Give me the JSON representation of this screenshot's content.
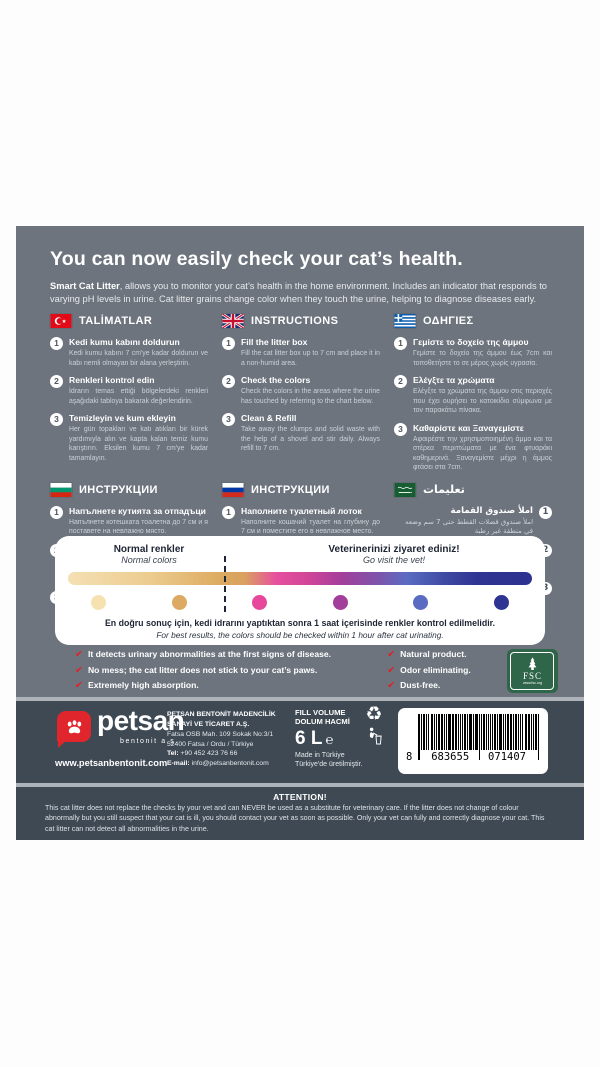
{
  "header": {
    "title": "You can now easily check your cat’s health.",
    "lead_bold": "Smart Cat Litter",
    "lead_rest": ", allows you to monitor your cat’s health in the home environment. Includes an indicator that responds to varying pH levels in urine. Cat litter grains change color when they touch the urine, helping to diagnose diseases early."
  },
  "sections": [
    {
      "lang": "turkish",
      "flag": "turkey-flag",
      "title": "TALİMATLAR",
      "steps": [
        {
          "num": "1",
          "title": "Kedi kumu kabını doldurun",
          "body": "Kedi kumu kabını 7 cm'ye kadar doldurun ve kabı nemli olmayan bir alana yerleştirin."
        },
        {
          "num": "2",
          "title": "Renkleri kontrol edin",
          "body": "İdrarın temas ettiği bölgelerdeki renkleri aşağıdaki tabloya bakarak değerlendirin."
        },
        {
          "num": "3",
          "title": "Temizleyin ve kum ekleyin",
          "body": "Her gün topakları ve katı atıkları bir kürek yardımıyla alın ve kapta kalan temiz kumu karıştırın. Eksilen kumu 7 cm'ye kadar tamamlayın."
        }
      ]
    },
    {
      "lang": "english",
      "flag": "uk-flag",
      "title": "INSTRUCTIONS",
      "steps": [
        {
          "num": "1",
          "title": "Fill the litter box",
          "body": "Fill the cat litter box up to 7 cm and place it in a non-humid area."
        },
        {
          "num": "2",
          "title": "Check the colors",
          "body": "Check the colors in the areas where the urine has touched by referring to the chart below."
        },
        {
          "num": "3",
          "title": "Clean & Refill",
          "body": "Take away the clumps and solid waste with the help of a shovel and stir daily. Always refill to 7 cm."
        }
      ]
    },
    {
      "lang": "greek",
      "flag": "greece-flag",
      "title": "ΟΔΗΓΙΕΣ",
      "steps": [
        {
          "num": "1",
          "title": "Γεμίστε το δοχείο της άμμου",
          "body": "Γεμίστε το δοχείο της άμμου έως 7cm και τοποθετήστε το σε μέρος χωρίς υγρασία."
        },
        {
          "num": "2",
          "title": "Ελέγξτε τα χρώματα",
          "body": "Ελέγξτε τα χρώματα της άμμου στις περιοχές που έχει ουρήσει το κατοικίδιο σύμφωνα με τον παρακάτω πίνακα."
        },
        {
          "num": "3",
          "title": "Καθαρίστε και Ξαναγεμίστε",
          "body": "Αφαιρέστε την χρησιμοποιημένη άμμο και τα στέρεα περιττώματα με ένα φτυαράκι καθημερινά. Ξαναγεμίστε μέχρι η άμμος φτάσει στα 7cm."
        }
      ]
    },
    {
      "lang": "bulgarian",
      "flag": "bulgaria-flag",
      "title": "ИНСТРУКЦИИ",
      "steps": [
        {
          "num": "1",
          "title": "Напълнете кутията за отпадъци",
          "body": "Напълнете котешката тоалетна до 7 см и я поставете на невлажно място."
        },
        {
          "num": "2",
          "title": "Проверете цветовете",
          "body": "Проверете цветовете в областите, където урината е докоснала, като се обърнете към таблицата по-долу."
        },
        {
          "num": "3",
          "title": "Почистване и пълнене",
          "body": "Отстранете буците и твърдите отпадъци с помощта на лопата и разбърквайте ежедневно. Винаги пълнете до 7 см."
        }
      ]
    },
    {
      "lang": "russian",
      "flag": "russia-flag",
      "title": "ИНСТРУКЦИИ",
      "steps": [
        {
          "num": "1",
          "title": "Наполните туалетный лоток",
          "body": "Наполните кошачий туалет на глубину до 7 см и поместите его в невлажное место."
        },
        {
          "num": "2",
          "title": "Проверьте цвета",
          "body": "Проверьте цвета участков, к которым прикоснулась моча, используя таблицу ниже."
        },
        {
          "num": "3",
          "title": "Очистите и наполните",
          "body": "Убирайте комки и твердые отходы с помощью лопаты и ежедневно перемешивайте. Всегда доливайте до 7 см."
        }
      ]
    },
    {
      "lang": "arabic",
      "flag": "saudi-arabia-flag",
      "title": "تعليمات",
      "steps": [
        {
          "num": "1",
          "title": "املأ صندوق القمامة",
          "body": "املأ صندوق فضلات القطط حتى 7 سم وضعه في منطقة غير رطبة"
        },
        {
          "num": "2",
          "title": "تحقق من الألوان",
          "body": "تحقق من الألوان في المناطق التي لمسها البول من خلال الرجوع إلى الرسم البياني أدناه"
        },
        {
          "num": "3",
          "title": "تنظيف وإعادة الملء",
          "body": "قم بإزالة الكتل والنفايات الصلبة بمساعدة المجرفة وحركها يوميا. قم دائما بإعادة التعبئة إلى 7 سم"
        }
      ]
    }
  ],
  "chart": {
    "normal_title": "Normal renkler",
    "normal_subtitle": "Normal colors",
    "vet_title": "Veterinerinizi ziyaret ediniz!",
    "vet_subtitle": "Go visit the vet!",
    "note_bold": "En doğru sonuç için, kedi idrarını yaptıktan sonra 1 saat içerisinde renkler kontrol edilmelidir.",
    "note_italic": "For best results, the colors should be checked within 1 hour after cat urinating.",
    "dot_colors": [
      "#f6e1b1",
      "#dcaa62",
      "#e8489b",
      "#a23f9b",
      "#5a6cc2",
      "#2e3492"
    ]
  },
  "features": {
    "left": [
      "It detects urinary abnormalities at the first signs of disease.",
      "No mess; the cat litter does not stick to your cat’s paws.",
      "Extremely high absorption."
    ],
    "right": [
      "Natural product.",
      "Odor eliminating.",
      "Dust-free."
    ],
    "fsc_label": "FSC",
    "fsc_url": "www.fsc.org"
  },
  "footer": {
    "brand_name": "petsan",
    "brand_sub": "bentonit a.ş.",
    "website": "www.petsanbentonit.com",
    "company_line1": "PETSAN BENTONİT MADENCİLİK",
    "company_line2": "SANAYİ VE TİCARET A.Ş.",
    "address1": "Fatsa OSB Mah. 109 Sokak No:3/1",
    "address2": "52400 Fatsa / Ordu / Türkiye",
    "tel_label": "Tel:",
    "tel": "+90 452 423 76 66",
    "email_label": "E-mail:",
    "email": "info@petsanbentonit.com",
    "volume_label1": "FILL VOLUME",
    "volume_label2": "DOLUM HACMİ",
    "volume_value": "6 L",
    "estimated_sign": "℮",
    "made1": "Made in Türkiye",
    "made2": "Türkiye'de üretilmiştir.",
    "barcode_digit": "8",
    "barcode_group1": "683655",
    "barcode_group2": "071407"
  },
  "attention": {
    "title": "ATTENTION!",
    "body": "This cat litter does not replace the checks by your vet and can NEVER be used as a substitute for veterinary care. If the litter does not change of colour abnormally but you still suspect that your cat is ill, you should contact your vet as soon as possible. Only your vet can fully and correctly diagnose your cat. This cat litter can not detect all abnormalities in the urine."
  }
}
